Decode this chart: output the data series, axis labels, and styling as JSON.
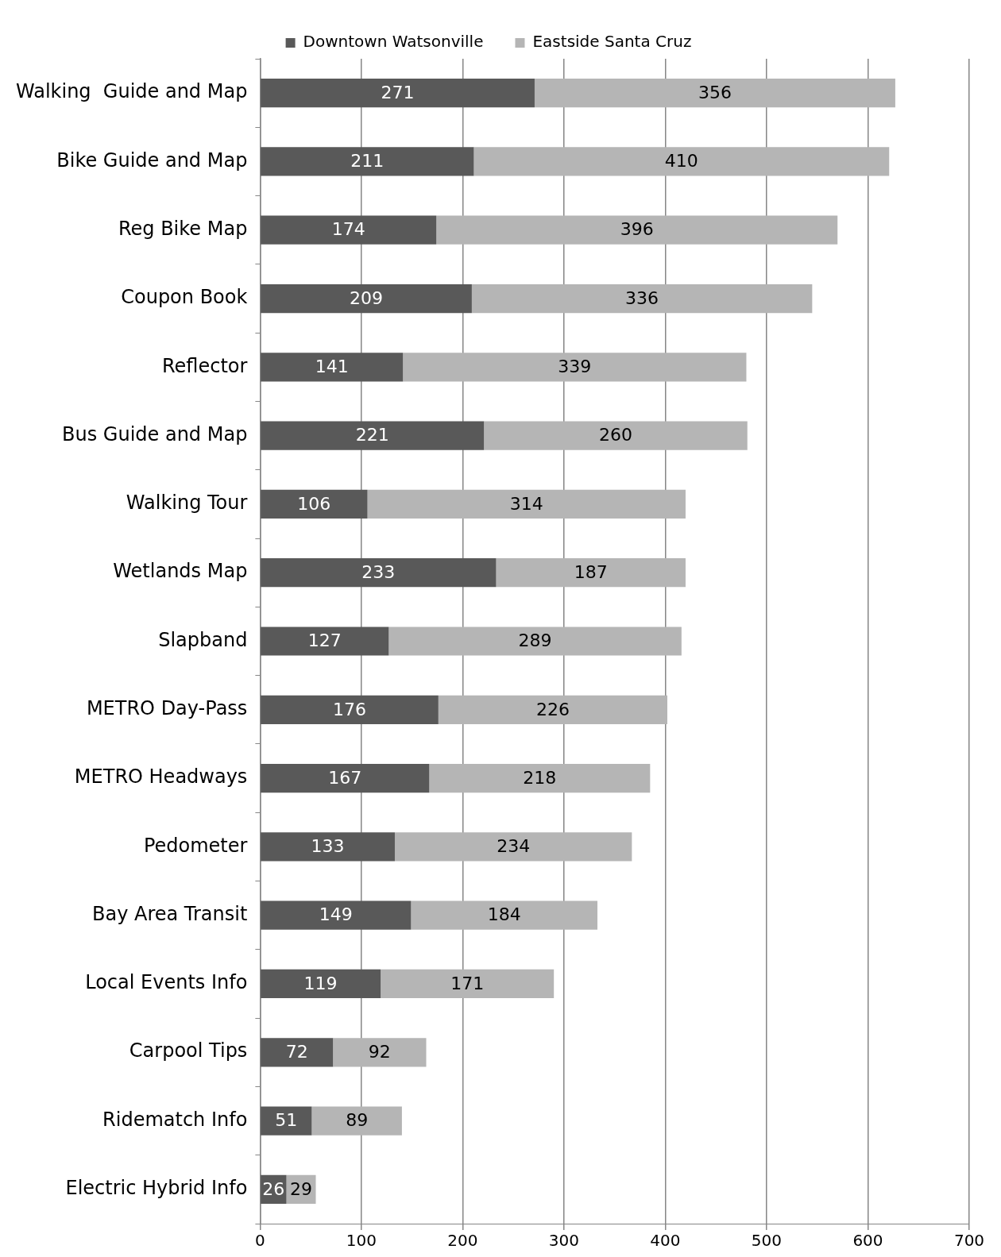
{
  "chart_data": {
    "type": "bar",
    "orientation": "horizontal",
    "stacked": true,
    "categories": [
      "Walking  Guide and Map",
      "Bike Guide and Map",
      "Reg Bike Map",
      "Coupon Book",
      "Reflector",
      "Bus Guide and Map",
      "Walking Tour",
      "Wetlands Map",
      "Slapband",
      "METRO Day-Pass",
      "METRO Headways",
      "Pedometer",
      "Bay Area Transit",
      "Local Events Info",
      "Carpool Tips",
      "Ridematch Info",
      "Electric Hybrid Info"
    ],
    "series": [
      {
        "name": "Downtown Watsonville",
        "color": "#595959",
        "values": [
          271,
          211,
          174,
          209,
          141,
          221,
          106,
          233,
          127,
          176,
          167,
          133,
          149,
          119,
          72,
          51,
          26
        ]
      },
      {
        "name": "Eastside Santa Cruz",
        "color": "#b5b5b5",
        "values": [
          356,
          410,
          396,
          336,
          339,
          260,
          314,
          187,
          289,
          226,
          218,
          234,
          184,
          171,
          92,
          89,
          29
        ]
      }
    ],
    "xlim": [
      0,
      700
    ],
    "xticks": [
      0,
      100,
      200,
      300,
      400,
      500,
      600,
      700
    ],
    "grid": "x",
    "legend": "top",
    "data_labels": true
  }
}
